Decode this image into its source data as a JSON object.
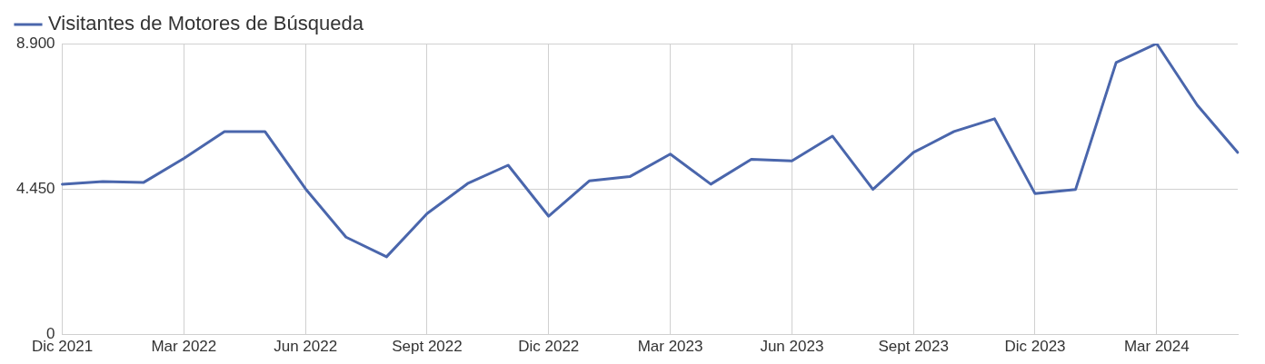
{
  "chart_data": {
    "type": "line",
    "categories": [
      "Dic 2021",
      null,
      null,
      "Mar 2022",
      null,
      null,
      "Jun 2022",
      null,
      null,
      "Sept 2022",
      null,
      null,
      "Dic 2022",
      null,
      null,
      "Mar 2023",
      null,
      null,
      "Jun 2023",
      null,
      null,
      "Sept 2023",
      null,
      null,
      "Dic 2023",
      null,
      null,
      "Mar 2024",
      null,
      null
    ],
    "series": [
      {
        "name": "Visitantes de Motores de Búsqueda",
        "color": "#4a66ac",
        "values": [
          4600,
          4680,
          4650,
          5390,
          6210,
          6210,
          4460,
          2980,
          2380,
          3700,
          4620,
          5180,
          3620,
          4700,
          4830,
          5520,
          4600,
          5360,
          5310,
          6070,
          4440,
          5570,
          6210,
          6600,
          4310,
          4440,
          8320,
          8900,
          7020,
          5570
        ]
      }
    ],
    "ylim": [
      0,
      8900
    ],
    "yticks": [
      {
        "value": 0,
        "label": "0"
      },
      {
        "value": 4450,
        "label": "4.450"
      },
      {
        "value": 8900,
        "label": "8.900"
      }
    ],
    "grid": true,
    "legend": "top left",
    "marker": "none",
    "line_style": "solid"
  }
}
